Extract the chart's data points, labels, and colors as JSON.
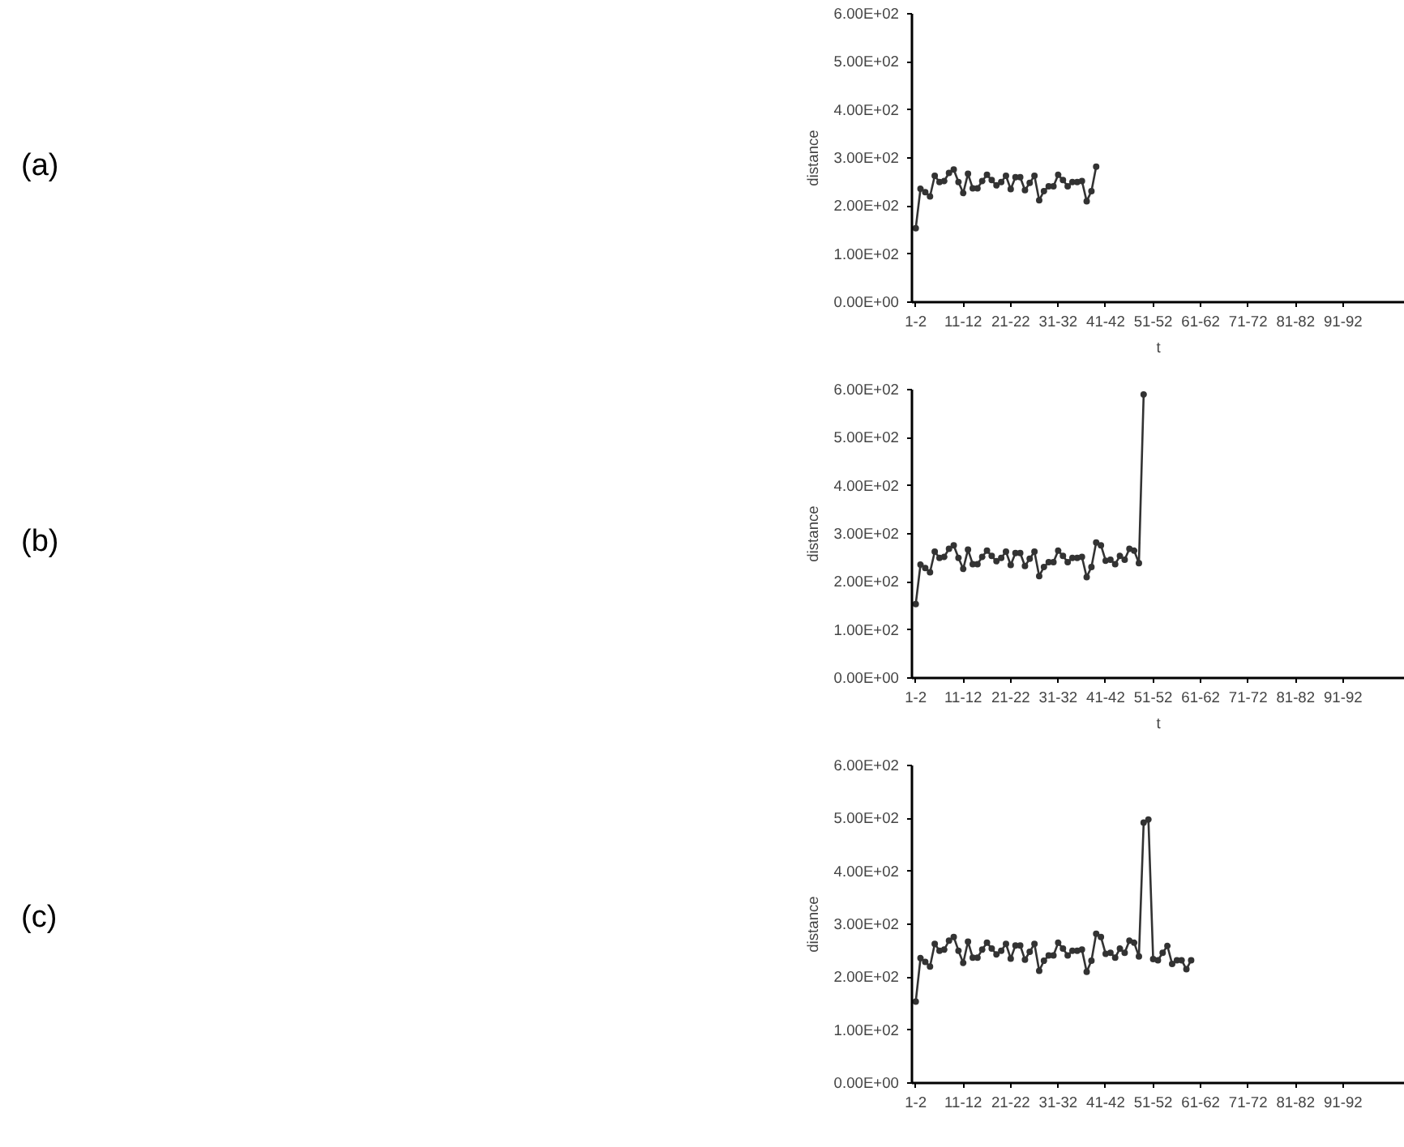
{
  "chart_data": [
    {
      "type": "line",
      "annotations": [
        "(a)"
      ],
      "ylabel": "distance",
      "xlabel": "t",
      "categories": [
        "1-2",
        null,
        null,
        null,
        null,
        null,
        null,
        null,
        null,
        null,
        "11-12",
        null,
        null,
        null,
        null,
        null,
        null,
        null,
        null,
        null,
        "21-22",
        null,
        null,
        null,
        null,
        null,
        null,
        null,
        null,
        null,
        "31-32",
        null,
        null,
        null,
        null,
        null,
        null,
        null,
        null,
        null,
        "41-42",
        null,
        null,
        null,
        null,
        null,
        null,
        null,
        null,
        null,
        "51-52",
        null,
        null,
        null,
        null,
        null,
        null,
        null,
        null,
        null,
        "61-62",
        null,
        null,
        null,
        null,
        null,
        null,
        null,
        null,
        null,
        "71-72",
        null,
        null,
        null,
        null,
        null,
        null,
        null,
        null,
        null,
        "81-82",
        null,
        null,
        null,
        null,
        null,
        null,
        null,
        null,
        null,
        "91-92",
        null,
        null,
        null,
        null,
        null,
        null,
        null,
        null,
        null
      ],
      "series": [
        {
          "color": "#333333",
          "values": [
            154,
            236,
            229,
            220,
            263,
            250,
            252,
            269,
            276,
            250,
            227,
            267,
            237,
            237,
            252,
            265,
            254,
            243,
            250,
            263,
            235,
            260,
            260,
            233,
            248,
            263,
            212,
            231,
            241,
            241,
            265,
            254,
            241,
            250,
            250,
            252,
            210,
            231,
            282,
            null,
            null,
            null,
            null,
            null,
            null,
            null,
            null,
            null,
            null,
            null,
            null,
            null,
            null,
            null,
            null,
            null,
            null,
            null,
            null,
            null,
            null,
            null,
            null,
            null,
            null,
            null,
            null,
            null,
            null,
            null,
            null,
            null,
            null,
            null,
            null,
            null,
            null,
            null,
            null,
            null,
            null,
            null,
            null,
            null,
            null,
            null,
            null,
            null,
            null,
            null,
            null,
            null,
            null,
            null,
            null,
            null,
            null,
            null,
            null,
            null
          ]
        }
      ],
      "ylim": [
        0,
        600
      ],
      "yticks": [
        {
          "value": 0,
          "label": "0.00E+00"
        },
        {
          "value": 100,
          "label": "1.00E+02"
        },
        {
          "value": 200,
          "label": "2.00E+02"
        },
        {
          "value": 300,
          "label": "3.00E+02"
        },
        {
          "value": 400,
          "label": "4.00E+02"
        },
        {
          "value": 500,
          "label": "5.00E+02"
        },
        {
          "value": 600,
          "label": "6.00E+02"
        }
      ],
      "grid": false,
      "marker": "circle",
      "line_style": "solid"
    },
    {
      "type": "line",
      "annotations": [
        "(b)"
      ],
      "ylabel": "distance",
      "xlabel": "t",
      "categories": [
        "1-2",
        null,
        null,
        null,
        null,
        null,
        null,
        null,
        null,
        null,
        "11-12",
        null,
        null,
        null,
        null,
        null,
        null,
        null,
        null,
        null,
        "21-22",
        null,
        null,
        null,
        null,
        null,
        null,
        null,
        null,
        null,
        "31-32",
        null,
        null,
        null,
        null,
        null,
        null,
        null,
        null,
        null,
        "41-42",
        null,
        null,
        null,
        null,
        null,
        null,
        null,
        null,
        null,
        "51-52",
        null,
        null,
        null,
        null,
        null,
        null,
        null,
        null,
        null,
        "61-62",
        null,
        null,
        null,
        null,
        null,
        null,
        null,
        null,
        null,
        "71-72",
        null,
        null,
        null,
        null,
        null,
        null,
        null,
        null,
        null,
        "81-82",
        null,
        null,
        null,
        null,
        null,
        null,
        null,
        null,
        null,
        "91-92",
        null,
        null,
        null,
        null,
        null,
        null,
        null,
        null,
        null
      ],
      "series": [
        {
          "color": "#333333",
          "values": [
            154,
            236,
            229,
            220,
            263,
            250,
            252,
            269,
            276,
            250,
            227,
            267,
            237,
            237,
            252,
            265,
            254,
            243,
            250,
            263,
            235,
            260,
            260,
            233,
            248,
            263,
            212,
            231,
            241,
            241,
            265,
            254,
            241,
            250,
            250,
            252,
            210,
            231,
            282,
            276,
            244,
            246,
            237,
            254,
            246,
            269,
            265,
            239,
            590,
            null,
            null,
            null,
            null,
            null,
            null,
            null,
            null,
            null,
            null,
            null,
            null,
            null,
            null,
            null,
            null,
            null,
            null,
            null,
            null,
            null,
            null,
            null,
            null,
            null,
            null,
            null,
            null,
            null,
            null,
            null,
            null,
            null,
            null,
            null,
            null,
            null,
            null,
            null,
            null,
            null,
            null,
            null,
            null,
            null,
            null,
            null,
            null,
            null,
            null,
            null
          ]
        }
      ],
      "ylim": [
        0,
        600
      ],
      "yticks": [
        {
          "value": 0,
          "label": "0.00E+00"
        },
        {
          "value": 100,
          "label": "1.00E+02"
        },
        {
          "value": 200,
          "label": "2.00E+02"
        },
        {
          "value": 300,
          "label": "3.00E+02"
        },
        {
          "value": 400,
          "label": "4.00E+02"
        },
        {
          "value": 500,
          "label": "5.00E+02"
        },
        {
          "value": 600,
          "label": "6.00E+02"
        }
      ],
      "grid": false,
      "marker": "circle",
      "line_style": "solid"
    },
    {
      "type": "line",
      "annotations": [
        "(c)"
      ],
      "ylabel": "distance",
      "categories": [
        "1-2",
        null,
        null,
        null,
        null,
        null,
        null,
        null,
        null,
        null,
        "11-12",
        null,
        null,
        null,
        null,
        null,
        null,
        null,
        null,
        null,
        "21-22",
        null,
        null,
        null,
        null,
        null,
        null,
        null,
        null,
        null,
        "31-32",
        null,
        null,
        null,
        null,
        null,
        null,
        null,
        null,
        null,
        "41-42",
        null,
        null,
        null,
        null,
        null,
        null,
        null,
        null,
        null,
        "51-52",
        null,
        null,
        null,
        null,
        null,
        null,
        null,
        null,
        null,
        "61-62",
        null,
        null,
        null,
        null,
        null,
        null,
        null,
        null,
        null,
        "71-72",
        null,
        null,
        null,
        null,
        null,
        null,
        null,
        null,
        null,
        "81-82",
        null,
        null,
        null,
        null,
        null,
        null,
        null,
        null,
        null,
        "91-92",
        null,
        null,
        null,
        null,
        null,
        null,
        null,
        null,
        null
      ],
      "series": [
        {
          "color": "#333333",
          "values": [
            154,
            236,
            229,
            220,
            263,
            250,
            252,
            269,
            276,
            250,
            227,
            267,
            237,
            237,
            252,
            265,
            254,
            243,
            250,
            263,
            235,
            260,
            260,
            233,
            248,
            263,
            212,
            231,
            241,
            241,
            265,
            254,
            241,
            250,
            250,
            252,
            210,
            231,
            282,
            276,
            244,
            246,
            237,
            254,
            246,
            269,
            265,
            239,
            492,
            498,
            234,
            232,
            246,
            259,
            225,
            232,
            232,
            215,
            232,
            null,
            null,
            null,
            null,
            null,
            null,
            null,
            null,
            null,
            null,
            null,
            null,
            null,
            null,
            null,
            null,
            null,
            null,
            null,
            null,
            null,
            null,
            null,
            null,
            null,
            null,
            null,
            null,
            null,
            null,
            null,
            null,
            null,
            null,
            null,
            null,
            null,
            null,
            null,
            null,
            null
          ]
        }
      ],
      "ylim": [
        0,
        600
      ],
      "yticks": [
        {
          "value": 0,
          "label": "0.00E+00"
        },
        {
          "value": 100,
          "label": "1.00E+02"
        },
        {
          "value": 200,
          "label": "2.00E+02"
        },
        {
          "value": 300,
          "label": "3.00E+02"
        },
        {
          "value": 400,
          "label": "4.00E+02"
        },
        {
          "value": 500,
          "label": "5.00E+02"
        },
        {
          "value": 600,
          "label": "6.00E+02"
        }
      ],
      "grid": false,
      "marker": "circle",
      "line_style": "solid"
    }
  ]
}
